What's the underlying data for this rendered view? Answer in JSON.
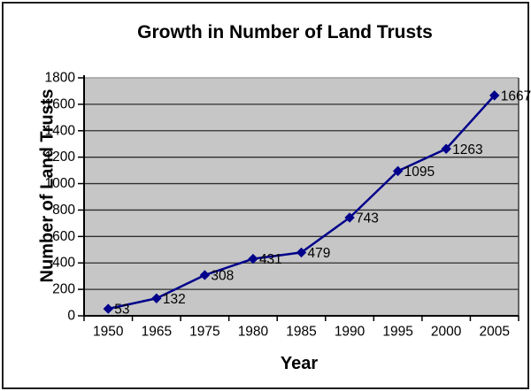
{
  "chart": {
    "title": "Growth in Number of Land Trusts",
    "xlabel": "Year",
    "ylabel": "Number of Land Trusts"
  },
  "chart_data": {
    "type": "line",
    "title": "Growth in Number of Land Trusts",
    "xlabel": "Year",
    "ylabel": "Number of Land Trusts",
    "categories": [
      "1950",
      "1965",
      "1975",
      "1980",
      "1985",
      "1990",
      "1995",
      "2000",
      "2005"
    ],
    "series": [
      {
        "name": "Land Trusts",
        "values": [
          53,
          132,
          308,
          431,
          479,
          743,
          1095,
          1263,
          1667
        ]
      }
    ],
    "data_labels": [
      "53",
      "132",
      "308",
      "431",
      "479",
      "743",
      "1095",
      "1263",
      "1667"
    ],
    "ylim": [
      0,
      1800
    ],
    "ytick_step": 200,
    "yticks": [
      0,
      200,
      400,
      600,
      800,
      1000,
      1200,
      1400,
      1600,
      1800
    ],
    "grid": true,
    "legend": "none",
    "marker": "diamond",
    "colors": {
      "line": "#00008B",
      "marker": "#00008B",
      "plot_bg": "#C6C6C6",
      "gridline": "#2e2e2e",
      "plot_border_top": "#9e9e9e",
      "plot_border_right": "#3c3c3c",
      "axis": "#000000",
      "text": "#000000",
      "outer_border": "#1f1f1f"
    }
  }
}
